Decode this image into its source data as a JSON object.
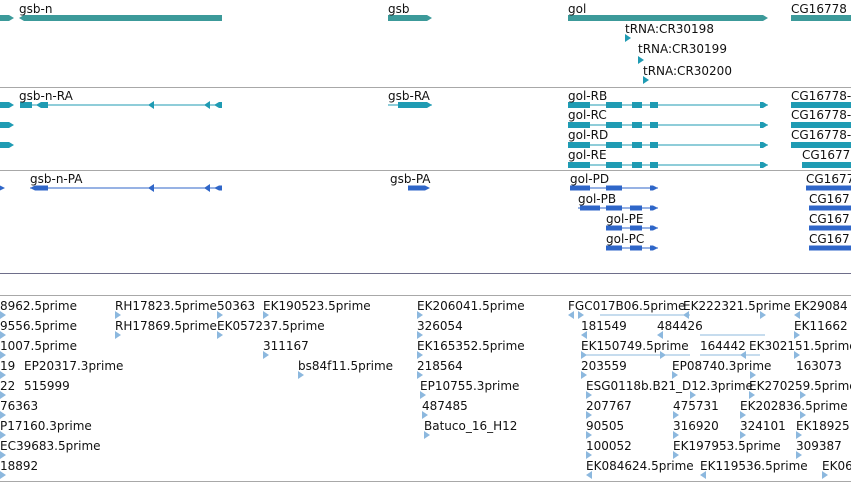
{
  "colors": {
    "gene": "#3c9a9a",
    "transcript": "#1f9bb3",
    "protein": "#2f66c8",
    "est": "#8cb8de",
    "separator": "#a8a8a8",
    "separator_dark": "#6e6e8a"
  },
  "tracks": {
    "gene": {
      "labels": [
        "gsb-n",
        "gsb",
        "gol",
        "CG16778",
        "tRNA:CR30198",
        "tRNA:CR30199",
        "tRNA:CR30200"
      ]
    },
    "transcript": {
      "labels": [
        "gsb-n-RA",
        "gsb-RA",
        "gol-RB",
        "gol-RC",
        "gol-RD",
        "gol-RE",
        "CG16778-",
        "CG16778-",
        "CG16778-",
        "CG1677"
      ]
    },
    "protein": {
      "labels": [
        "gsb-n-PA",
        "gsb-PA",
        "gol-PD",
        "gol-PB",
        "gol-PE",
        "gol-PC",
        "CG1677",
        "CG167",
        "CG167",
        "CG167"
      ]
    },
    "est": {
      "labels": [
        "8962.5prime",
        "RH17823.5prime",
        "50363",
        "EK190523.5prime",
        "EK206041.5prime",
        "FGC017B06.5prime",
        "EK222321.5prime",
        "EK29084",
        "9556.5prime",
        "RH17869.5prime",
        "EK057237.5prime",
        "326054",
        "181549",
        "484426",
        "EK11662",
        "1007.5prime",
        "311167",
        "EK165352.5prime",
        "EK150749.5prime",
        "164442",
        "EK302151.5prime",
        "19",
        "EP20317.3prime",
        "bs84f11.5prime",
        "218564",
        "203559",
        "EP08740.3prime",
        "163073",
        "22",
        "515999",
        "EP10755.3prime",
        "ESG0118b.B21_D12.3prime",
        "EK270259.5prime",
        "76363",
        "487485",
        "207767",
        "475731",
        "EK202836.5prime",
        "P17160.3prime",
        "Batuco_16_H12",
        "90505",
        "316920",
        "324101",
        "EK18925",
        "EC39683.5prime",
        "100052",
        "EK197953.5prime",
        "309387",
        "18892",
        "EK084624.5prime",
        "EK119536.5prime",
        "EK06"
      ]
    }
  }
}
